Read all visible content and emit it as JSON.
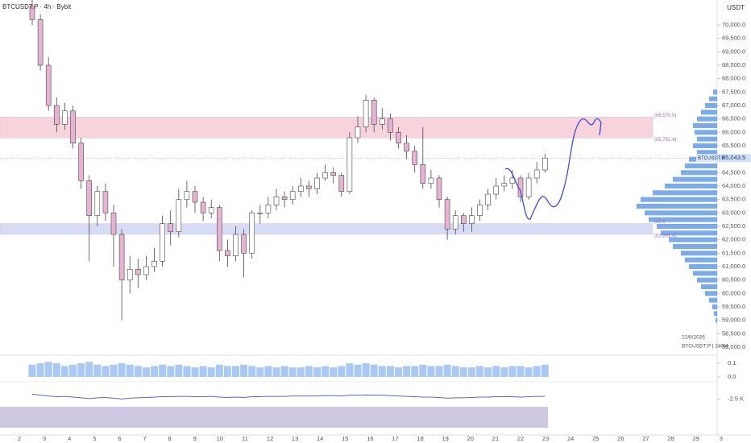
{
  "chart_data": [
    {
      "type": "candlestick",
      "title": "BTCUSDT.P · 4h · Bybit",
      "currency": "USDT",
      "symbol": "BTCUSDT.P",
      "date_note": "22/6/2026",
      "interval_note": "BTCUSDT.P | 240M",
      "up_color": "#ffffff",
      "down_color": "#e6b3d3",
      "wick_color": "#4a4a4a",
      "candles": {
        "open": [
          70700,
          70200,
          68500,
          67000,
          66300,
          66800,
          65600,
          64200,
          62900,
          63800,
          63000,
          62200,
          60500,
          60900,
          60700,
          61000,
          61200,
          62600,
          62300,
          63500,
          63800,
          63400,
          63000,
          63200,
          61600,
          61400,
          62200,
          61500,
          63000,
          63000,
          63300,
          63600,
          63500,
          63800,
          64000,
          63900,
          64300,
          64500,
          64400,
          63800,
          65800,
          66200,
          67200,
          66300,
          66500,
          66000,
          65600,
          65300,
          64800,
          64100,
          64300,
          63500,
          62400,
          62900,
          62600,
          62900,
          63300,
          63700,
          64000,
          64100,
          64300,
          63600,
          64300,
          64600
        ],
        "high": [
          70950,
          70400,
          68800,
          67300,
          67100,
          67000,
          65800,
          64400,
          64000,
          64100,
          63300,
          62400,
          61400,
          61300,
          61400,
          61700,
          62900,
          63100,
          63900,
          64200,
          64000,
          63600,
          63500,
          63300,
          62000,
          62500,
          62400,
          63100,
          63300,
          63600,
          63900,
          63800,
          64000,
          64300,
          64200,
          64500,
          64800,
          64700,
          64500,
          66000,
          66600,
          67400,
          67300,
          66900,
          66700,
          66200,
          65900,
          65500,
          66200,
          64600,
          64400,
          63600,
          63100,
          63000,
          63200,
          63500,
          63900,
          64300,
          64400,
          64600,
          64400,
          64500,
          64900,
          65200
        ],
        "low": [
          70000,
          68300,
          66800,
          66000,
          66100,
          65400,
          63900,
          61200,
          62500,
          62700,
          61000,
          59000,
          60000,
          60200,
          60500,
          60800,
          61000,
          61800,
          62100,
          63200,
          63000,
          62700,
          62800,
          61200,
          61000,
          61200,
          60600,
          61300,
          62600,
          62800,
          63100,
          63200,
          63300,
          63600,
          63600,
          63700,
          64200,
          64100,
          63600,
          63700,
          65600,
          66000,
          66000,
          66100,
          65700,
          65400,
          65000,
          64500,
          63900,
          63900,
          63200,
          62000,
          62200,
          62300,
          62300,
          62700,
          63100,
          63500,
          63800,
          63900,
          63400,
          63500,
          64100,
          64500
        ],
        "close": [
          70200,
          68500,
          67000,
          66300,
          66800,
          65600,
          64200,
          62900,
          63800,
          63000,
          62200,
          60500,
          60900,
          60700,
          61000,
          61200,
          62600,
          62300,
          63500,
          63800,
          63400,
          63000,
          63200,
          61600,
          61400,
          62200,
          61500,
          63000,
          63000,
          63300,
          63600,
          63500,
          63800,
          64000,
          63900,
          64300,
          64500,
          64400,
          63800,
          65800,
          66200,
          67200,
          66300,
          66500,
          66000,
          65600,
          65300,
          64800,
          64100,
          64300,
          63500,
          62400,
          62900,
          62600,
          62900,
          63300,
          63700,
          64000,
          64100,
          64300,
          63600,
          64300,
          64600,
          65043.5
        ]
      },
      "last_price": {
        "value": 65043.5,
        "label": "65,043.5"
      },
      "zones": [
        {
          "top": 66570.9,
          "bottom": 65791.4,
          "top_label": "(66,570.9)",
          "bottom_label": "(65,791.4)",
          "color": "#f7d3de"
        },
        {
          "top": 62600,
          "bottom": 62201.4,
          "top_label": "(62,6",
          "bottom_label": "(62,201.4)",
          "color": "#d8dbf6"
        }
      ],
      "volume_profile": {
        "color": "#4f8fe0",
        "prices": [
          67500,
          67250,
          67000,
          66750,
          66500,
          66250,
          66000,
          65750,
          65500,
          65250,
          65000,
          64750,
          64500,
          64250,
          64000,
          63750,
          63500,
          63250,
          63000,
          62750,
          62500,
          62250,
          62000,
          61750,
          61500,
          61250,
          61000,
          60750,
          60500,
          60250,
          60000,
          59750,
          59500,
          59250,
          59000
        ],
        "values": [
          5,
          10,
          15,
          20,
          25,
          30,
          28,
          25,
          30,
          25,
          35,
          40,
          45,
          55,
          65,
          80,
          95,
          100,
          90,
          85,
          75,
          70,
          60,
          55,
          45,
          40,
          35,
          30,
          25,
          20,
          15,
          10,
          6,
          4,
          2
        ]
      },
      "x_labels": [
        "2",
        "3",
        "4",
        "5",
        "6",
        "7",
        "8",
        "9",
        "10",
        "11",
        "12",
        "13",
        "14",
        "15",
        "16",
        "17",
        "18",
        "19",
        "20",
        "21",
        "22",
        "23",
        "24",
        "25",
        "26",
        "27",
        "28",
        "29",
        "3"
      ],
      "ylim": [
        57730,
        70930
      ],
      "yticks": [
        {
          "value": 58000,
          "label": "58,000.0"
        },
        {
          "value": 58500,
          "label": "58,500.0"
        },
        {
          "value": 59000,
          "label": "59,000.0"
        },
        {
          "value": 59500,
          "label": "59,500.0"
        },
        {
          "value": 60000,
          "label": "60,000.0"
        },
        {
          "value": 60500,
          "label": "60,500.0"
        },
        {
          "value": 61000,
          "label": "61,000.0"
        },
        {
          "value": 61500,
          "label": "61,500.0"
        },
        {
          "value": 62000,
          "label": "62,000.0"
        },
        {
          "value": 62500,
          "label": "62,500.0"
        },
        {
          "value": 63000,
          "label": "63,000.0"
        },
        {
          "value": 63500,
          "label": "63,500.0"
        },
        {
          "value": 64000,
          "label": "64,000.0"
        },
        {
          "value": 64500,
          "label": "64,500.0"
        },
        {
          "value": 65000,
          "label": "65,000.0"
        },
        {
          "value": 65500,
          "label": "65,500.0"
        },
        {
          "value": 66000,
          "label": "66,000.0"
        },
        {
          "value": 66500,
          "label": "66,500.0"
        },
        {
          "value": 67000,
          "label": "67,000.0"
        },
        {
          "value": 67500,
          "label": "67,500.0"
        },
        {
          "value": 68000,
          "label": "68,000.0"
        },
        {
          "value": 68500,
          "label": "68,500.0"
        },
        {
          "value": 69000,
          "label": "69,000.0"
        },
        {
          "value": 69500,
          "label": "69,500.0"
        },
        {
          "value": 70000,
          "label": "70,000.0"
        }
      ]
    },
    {
      "type": "bar",
      "color": "#a9c9f4",
      "values": [
        0.09,
        0.1,
        0.11,
        0.1,
        0.08,
        0.09,
        0.1,
        0.11,
        0.09,
        0.08,
        0.09,
        0.1,
        0.09,
        0.08,
        0.07,
        0.08,
        0.09,
        0.08,
        0.09,
        0.08,
        0.07,
        0.08,
        0.07,
        0.09,
        0.08,
        0.08,
        0.09,
        0.08,
        0.07,
        0.08,
        0.07,
        0.08,
        0.07,
        0.07,
        0.08,
        0.07,
        0.08,
        0.07,
        0.08,
        0.1,
        0.09,
        0.1,
        0.09,
        0.08,
        0.08,
        0.07,
        0.08,
        0.08,
        0.09,
        0.08,
        0.08,
        0.09,
        0.08,
        0.07,
        0.07,
        0.08,
        0.07,
        0.08,
        0.07,
        0.08,
        0.08,
        0.07,
        0.08,
        0.09
      ],
      "ylim": [
        -0.012,
        0.118
      ],
      "yticks": [
        {
          "value": 0.1,
          "label": "0.1"
        },
        {
          "value": 0,
          "label": "0.0"
        }
      ]
    },
    {
      "type": "line",
      "color": "#5b6bc0",
      "values": [
        -1200,
        -1500,
        -1700,
        -1900,
        -1800,
        -2000,
        -2200,
        -2400,
        -2200,
        -2100,
        -2300,
        -2500,
        -2300,
        -2200,
        -2100,
        -2000,
        -1900,
        -1900,
        -1800,
        -1800,
        -1900,
        -1900,
        -1800,
        -2000,
        -2100,
        -2000,
        -2100,
        -1900,
        -1900,
        -1800,
        -1800,
        -1800,
        -1700,
        -1700,
        -1700,
        -1700,
        -1600,
        -1600,
        -1700,
        -1500,
        -1500,
        -1400,
        -1500,
        -1500,
        -1600,
        -1700,
        -1800,
        -1900,
        -2000,
        -2000,
        -2100,
        -2300,
        -2200,
        -2200,
        -2100,
        -2000,
        -2000,
        -1900,
        -1900,
        -1900,
        -2000,
        -1900,
        -1800,
        -1800
      ],
      "ylim": [
        -3500,
        2500
      ],
      "yticks": [
        {
          "value": -2500,
          "label": "-2.5 K"
        }
      ]
    }
  ]
}
